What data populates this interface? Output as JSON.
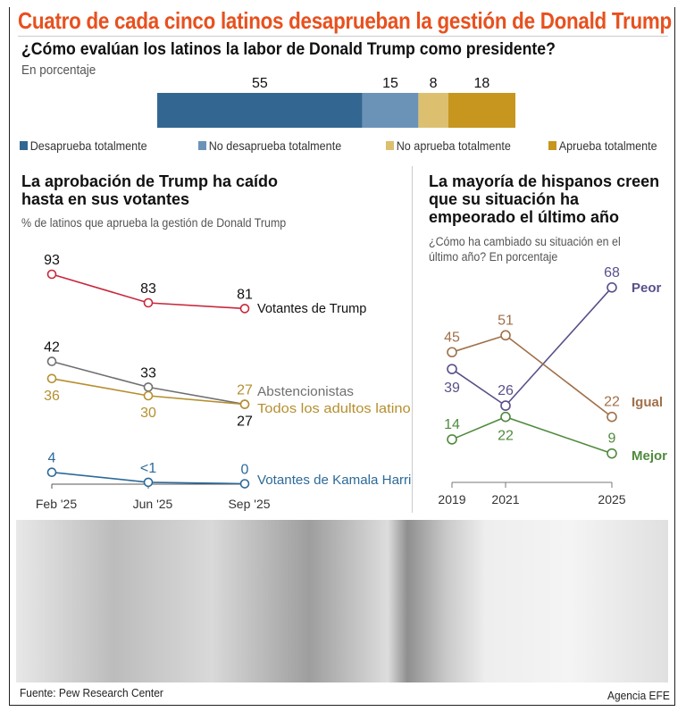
{
  "title": "Cuatro de cada cinco latinos desaprueban la gestión de Donald Trump",
  "source": "Fuente: Pew Research Center",
  "credit": "Agencia EFE",
  "colors": {
    "title": "#e8501e"
  },
  "chart_data": [
    {
      "type": "bar",
      "orientation": "horizontal-stacked",
      "title": "¿Cómo evalúan los latinos la labor de Donald Trump como presidente?",
      "subtitle": "En porcentaje",
      "legend_position": "bottom",
      "series": [
        {
          "name": "Desaprueba totalmente",
          "value": 55,
          "color": "#336791"
        },
        {
          "name": "No desaprueba totalmente",
          "value": 15,
          "color": "#6b93b8"
        },
        {
          "name": "No aprueba totalmente",
          "value": 8,
          "color": "#dcc070"
        },
        {
          "name": "Aprueba totalmente",
          "value": 18,
          "color": "#c6961e"
        }
      ]
    },
    {
      "type": "line",
      "title": "La aprobación de Trump ha caído hasta en sus votantes",
      "subtitle": "% de latinos que aprueba la gestión de Donald Trump",
      "x": [
        "Feb '25",
        "Jun '25",
        "Sep '25"
      ],
      "grid": false,
      "series": [
        {
          "name": "Votantes de Trump",
          "values": [
            93,
            83,
            81
          ],
          "labels": [
            "93",
            "83",
            "81"
          ],
          "color": "#c8283c",
          "label_color": "#111"
        },
        {
          "name": "Abstencionistas",
          "values": [
            42,
            33,
            27
          ],
          "labels": [
            "42",
            "33",
            "27"
          ],
          "color": "#707070",
          "label_color": "#111"
        },
        {
          "name": "Todos los adultos latinos",
          "values": [
            36,
            30,
            27
          ],
          "labels": [
            "36",
            "30",
            "27"
          ],
          "color": "#b58f2f",
          "label_color": "#b58f2f"
        },
        {
          "name": "Votantes de Kamala Harris",
          "values": [
            4,
            0.5,
            0
          ],
          "labels": [
            "4",
            "<1",
            "0"
          ],
          "color": "#2d6a99",
          "label_color": "#2d6a99"
        }
      ]
    },
    {
      "type": "line",
      "title": "La mayoría de hispanos creen que su situación ha empeorado el último año",
      "subtitle": "¿Cómo ha cambiado su situación en el último año? En porcentaje",
      "x": [
        "2019",
        "2021",
        "2025"
      ],
      "grid": false,
      "series": [
        {
          "name": "Peor",
          "values": [
            39,
            26,
            68
          ],
          "color": "#5b4f8a"
        },
        {
          "name": "Igual",
          "values": [
            45,
            51,
            22
          ],
          "color": "#a0704a"
        },
        {
          "name": "Mejor",
          "values": [
            14,
            22,
            9
          ],
          "color": "#4f8a3e"
        }
      ]
    }
  ]
}
